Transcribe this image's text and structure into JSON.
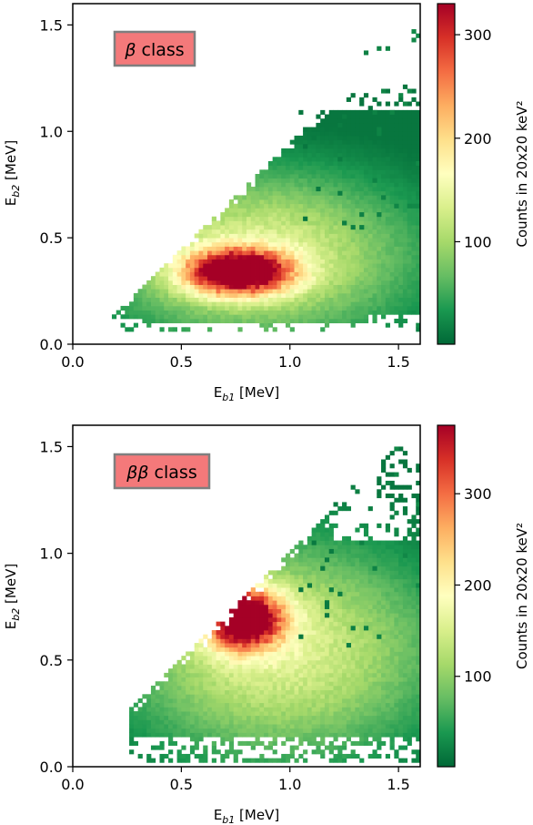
{
  "chart_data": [
    {
      "type": "heatmap",
      "label": "β class",
      "label_parts": [
        "β",
        " class"
      ],
      "xlabel_parts": [
        "E",
        "b1",
        " [MeV]"
      ],
      "ylabel_parts": [
        "E",
        "b2",
        " [MeV]"
      ],
      "xlim": [
        0.0,
        1.6
      ],
      "ylim": [
        0.0,
        1.6
      ],
      "xticks": [
        "0.0",
        "0.5",
        "1.0",
        "1.5"
      ],
      "xtick_values": [
        0.0,
        0.5,
        1.0,
        1.5
      ],
      "yticks": [
        "0.0",
        "0.5",
        "1.0",
        "1.5"
      ],
      "ytick_values": [
        0.0,
        0.5,
        1.0,
        1.5
      ],
      "bin_size_mev": 0.02,
      "colorbar": {
        "label": "Counts in 20x20 keV²",
        "range": [
          1,
          330
        ],
        "ticks": [
          "100",
          "200",
          "300"
        ],
        "tick_values": [
          100,
          200,
          300
        ],
        "colormap": "RdYlGn_r"
      },
      "peak": {
        "x": 0.76,
        "y": 0.34,
        "counts": 330
      },
      "x_min": 0.18,
      "upper_edge_slope": 1.0,
      "lower_edge_y": 0.07,
      "grid": false
    },
    {
      "type": "heatmap",
      "label": "ββ class",
      "label_parts": [
        "ββ",
        " class"
      ],
      "xlabel_parts": [
        "E",
        "b1",
        " [MeV]"
      ],
      "ylabel_parts": [
        "E",
        "b2",
        " [MeV]"
      ],
      "xlim": [
        0.0,
        1.6
      ],
      "ylim": [
        0.0,
        1.6
      ],
      "xticks": [
        "0.0",
        "0.5",
        "1.0",
        "1.5"
      ],
      "xtick_values": [
        0.0,
        0.5,
        1.0,
        1.5
      ],
      "yticks": [
        "0.0",
        "0.5",
        "1.0",
        "1.5"
      ],
      "ytick_values": [
        0.0,
        0.5,
        1.0,
        1.5
      ],
      "bin_size_mev": 0.02,
      "colorbar": {
        "label": "Counts in 20x20 keV²",
        "range": [
          1,
          375
        ],
        "ticks": [
          "100",
          "200",
          "300"
        ],
        "tick_values": [
          100,
          200,
          300
        ],
        "colormap": "RdYlGn_r"
      },
      "peak": {
        "x": 0.78,
        "y": 0.7,
        "counts": 375
      },
      "x_min": 0.27,
      "upper_edge_slope": 1.0,
      "lower_edge_y": 0.03,
      "grid": false
    }
  ],
  "colors": {
    "badge_fill": "#f4797a",
    "badge_stroke": "#7f7f7f",
    "cmap_stops": [
      "#006837",
      "#1a9850",
      "#66bd63",
      "#a6d96a",
      "#d9ef8b",
      "#ffffbf",
      "#fee08b",
      "#fdae61",
      "#f46d43",
      "#d73027",
      "#a50026"
    ]
  }
}
